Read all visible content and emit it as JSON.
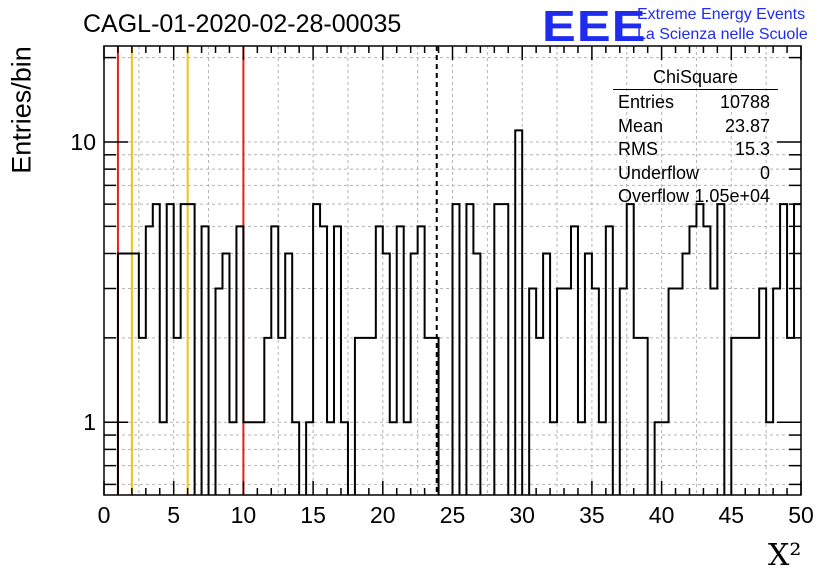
{
  "header": {
    "title": "CAGL-01-2020-02-28-00035",
    "logo_text": "EEE",
    "org_line1": "Extreme Energy Events",
    "org_line2": "La Scienza nelle Scuole",
    "logo_color": "#1f2cf0"
  },
  "stats": {
    "name": "ChiSquare",
    "rows": [
      {
        "label": "Entries",
        "value": "10788"
      },
      {
        "label": "Mean",
        "value": "23.87"
      },
      {
        "label": "RMS",
        "value": "15.3"
      },
      {
        "label": "Underflow",
        "value": "0"
      },
      {
        "label": "Overflow",
        "value": "1.05e+04"
      }
    ]
  },
  "chart_data": {
    "type": "bar",
    "histogram": "step",
    "xlabel": "X²",
    "ylabel": "Entries/bin",
    "xlim": [
      0,
      50
    ],
    "ylim": [
      0.55,
      22
    ],
    "yscale": "log",
    "grid": true,
    "x_ticks": [
      0,
      5,
      10,
      15,
      20,
      25,
      30,
      35,
      40,
      45,
      50
    ],
    "y_ticks": [
      1,
      10
    ],
    "bin_width": 0.5,
    "bin_values": [
      0,
      0,
      4,
      4,
      4,
      2,
      5,
      6,
      1,
      6,
      2,
      6,
      6,
      0,
      5,
      0,
      3,
      4,
      1,
      5,
      1,
      1,
      1,
      2,
      5,
      2,
      4,
      1,
      0,
      1,
      6,
      5,
      1,
      5,
      1,
      0,
      2,
      2,
      2,
      5,
      4,
      1,
      5,
      1,
      4,
      5,
      2,
      2,
      0,
      0,
      6,
      0,
      6,
      4,
      0,
      0,
      6,
      6,
      0,
      11,
      0,
      3,
      2,
      4,
      1,
      3,
      3,
      5,
      1,
      4,
      3,
      1,
      5,
      0,
      3,
      6,
      2,
      2,
      0,
      1,
      1,
      3,
      3,
      4,
      5,
      6,
      5,
      3,
      6,
      0,
      2,
      2,
      2,
      2,
      3,
      1,
      3,
      6,
      2,
      6
    ],
    "vertical_lines": [
      {
        "x": 1,
        "color": "#e8201a",
        "style": "solid"
      },
      {
        "x": 2,
        "color": "#f2c20c",
        "style": "solid"
      },
      {
        "x": 6,
        "color": "#f2c20c",
        "style": "solid"
      },
      {
        "x": 10,
        "color": "#e8201a",
        "style": "solid"
      },
      {
        "x": 23.87,
        "color": "#000000",
        "style": "dashed"
      }
    ],
    "line_color": "#000000"
  }
}
